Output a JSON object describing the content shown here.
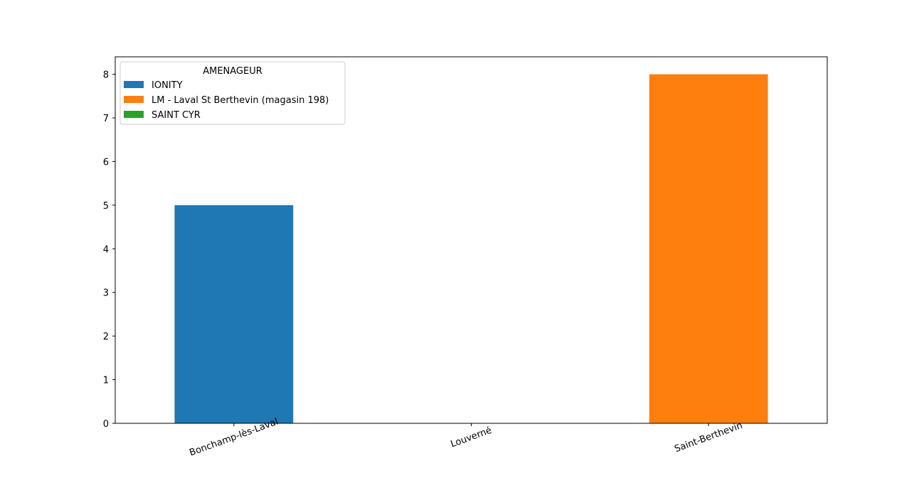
{
  "chart_data": {
    "type": "bar",
    "title": "",
    "xlabel": "",
    "ylabel": "",
    "categories": [
      "Bonchamp-lès-Laval",
      "Louverné",
      "Saint-Berthevin"
    ],
    "series": [
      {
        "name": "IONITY",
        "color": "#1f77b4",
        "values": [
          5,
          0,
          0
        ]
      },
      {
        "name": "LM - Laval St Berthevin (magasin 198)",
        "color": "#ff7f0e",
        "values": [
          0,
          0,
          8
        ]
      },
      {
        "name": "SAINT CYR",
        "color": "#2ca02c",
        "values": [
          0,
          0,
          0
        ]
      }
    ],
    "ylim": [
      0,
      8.4
    ],
    "yticks": [
      0,
      1,
      2,
      3,
      4,
      5,
      6,
      7,
      8
    ],
    "stacked": true,
    "grid": false,
    "legend": {
      "title": "AMENAGEUR",
      "placement": "top-left"
    },
    "xtick_rotation_deg": 20
  }
}
